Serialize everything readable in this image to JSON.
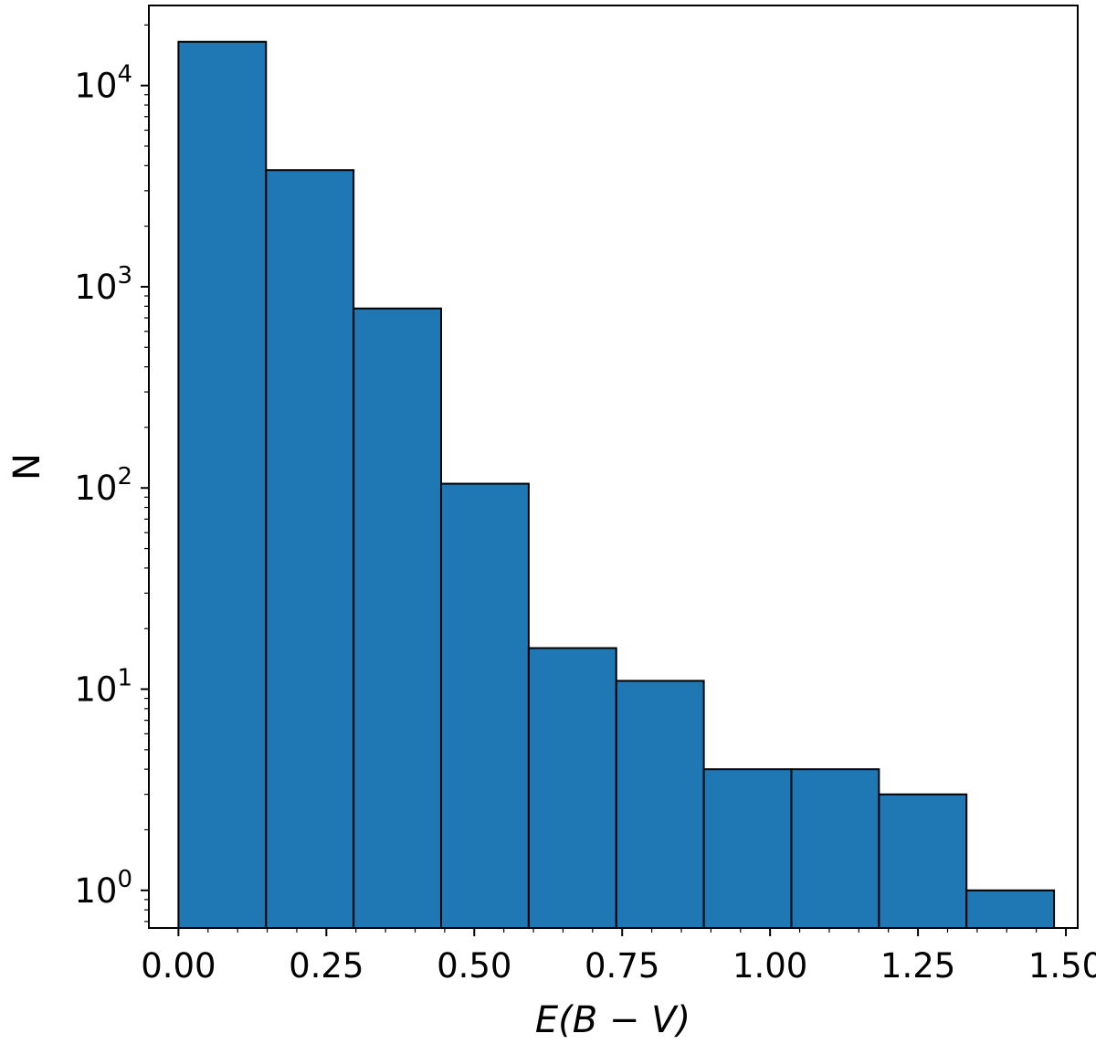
{
  "chart_data": {
    "type": "bar",
    "title": "",
    "xlabel": "E(B − V)",
    "ylabel": "N",
    "yscale": "log",
    "bin_edges": [
      0.0,
      0.148,
      0.296,
      0.444,
      0.592,
      0.74,
      0.888,
      1.036,
      1.184,
      1.332,
      1.48
    ],
    "values": [
      16500,
      3800,
      780,
      105,
      16,
      11,
      4,
      4,
      3,
      1
    ],
    "xlim": [
      -0.05,
      1.52
    ],
    "ylim": [
      0.65,
      25000
    ],
    "x_ticks": [
      "0.00",
      "0.25",
      "0.50",
      "0.75",
      "1.00",
      "1.25",
      "1.50"
    ],
    "x_tick_values": [
      0.0,
      0.25,
      0.5,
      0.75,
      1.0,
      1.25,
      1.5
    ],
    "y_ticks": [
      {
        "base": "10",
        "exp": "0",
        "value": 1
      },
      {
        "base": "10",
        "exp": "1",
        "value": 10
      },
      {
        "base": "10",
        "exp": "2",
        "value": 100
      },
      {
        "base": "10",
        "exp": "3",
        "value": 1000
      },
      {
        "base": "10",
        "exp": "4",
        "value": 10000
      }
    ],
    "grid": false,
    "legend": "none",
    "bar_color": "#1f77b4",
    "edge_color": "#000000"
  }
}
